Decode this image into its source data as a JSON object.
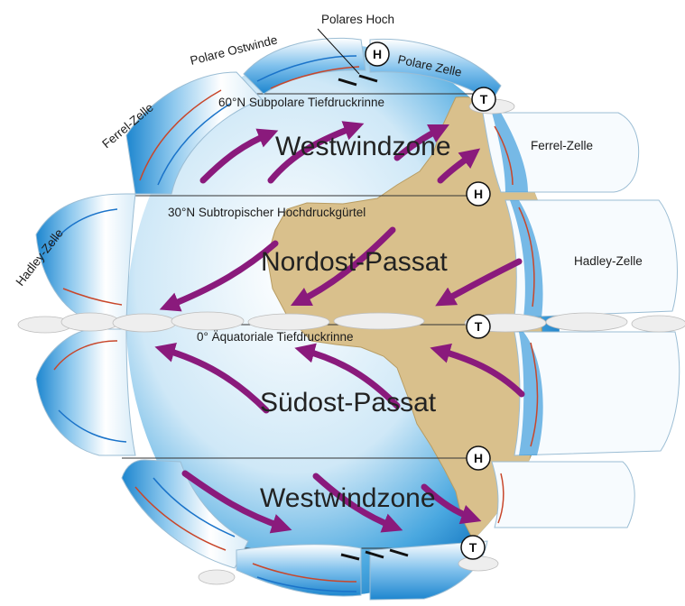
{
  "labels": {
    "polare_ostwinde": "Polare Ostwinde",
    "polares_hoch": "Polares Hoch",
    "polare_zelle": "Polare Zelle",
    "subpolar": "60°N Subpolare Tiefdruckrinne",
    "ferrel_left": "Ferrel-Zelle",
    "ferrel_right": "Ferrel-Zelle",
    "westwind_north": "Westwindzone",
    "subtropical": "30°N Subtropischer Hochdruckgürtel",
    "hadley_left": "Hadley-Zelle",
    "hadley_right": "Hadley-Zelle",
    "nordost": "Nordost-Passat",
    "equator": "0° Äquatoriale Tiefdruckrinne",
    "suedost": "Südost-Passat",
    "westwind_south": "Westwindzone"
  },
  "pressure_badges": [
    "H",
    "T",
    "H",
    "T",
    "H",
    "T"
  ],
  "colors": {
    "ocean_light": "#e6f3fb",
    "ocean_deep": "#1f8fd6",
    "land": "#d9c08c",
    "wind_arrow": "#8a1a7c",
    "cell_flow_red": "#c8462a",
    "cell_flow_blue": "#1a73c9"
  }
}
